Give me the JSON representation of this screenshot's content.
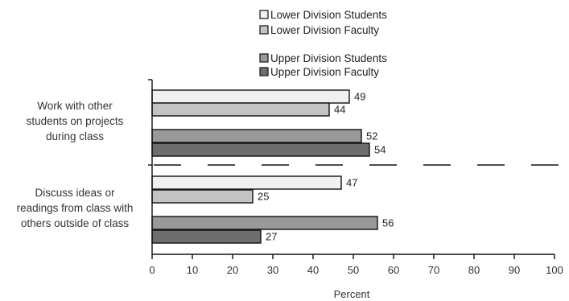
{
  "chart_data": {
    "type": "bar",
    "orientation": "horizontal",
    "categories": [
      "Work with other students on projects during class",
      "Discuss ideas or readings from class with others outside of class"
    ],
    "category_lines": [
      [
        "Work with other",
        "students on projects",
        "during class"
      ],
      [
        "Discuss ideas or",
        "readings from class with",
        "others outside of class"
      ]
    ],
    "series": [
      {
        "name": "Lower Division Students",
        "values": [
          49,
          47
        ],
        "color": "#f0f0f0"
      },
      {
        "name": "Lower Division Faculty",
        "values": [
          44,
          25
        ],
        "color": "#c4c4c4"
      },
      {
        "name": "Upper Division Students",
        "values": [
          52,
          56
        ],
        "color": "#999999"
      },
      {
        "name": "Upper Division Faculty",
        "values": [
          54,
          27
        ],
        "color": "#6e6e6e"
      }
    ],
    "xlabel": "Percent",
    "ylabel": "",
    "xlim": [
      0,
      100
    ],
    "xticks": [
      0,
      10,
      20,
      30,
      40,
      50,
      60,
      70,
      80,
      90,
      100
    ],
    "legend_position": "top",
    "grid": false,
    "category_separator": "dashed"
  }
}
